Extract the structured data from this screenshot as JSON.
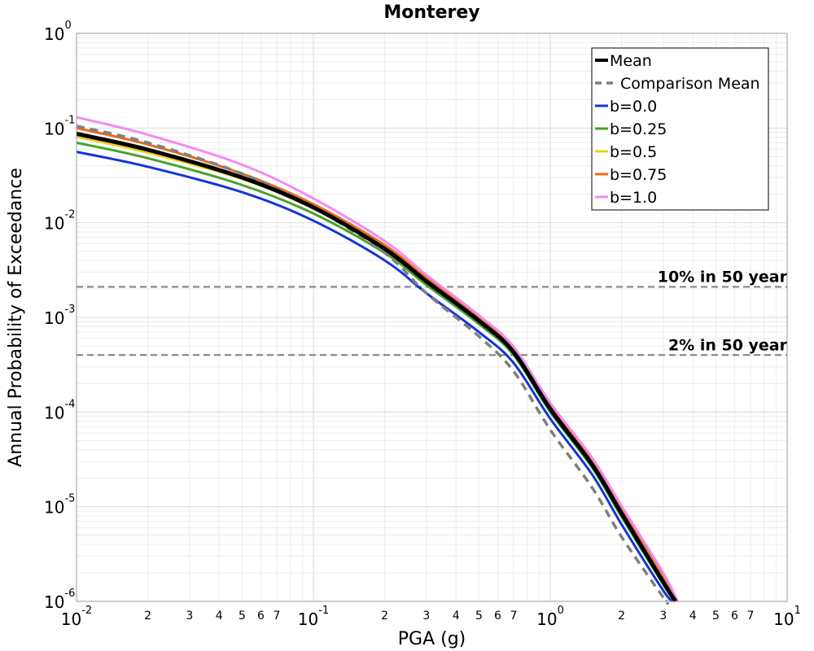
{
  "chart_data": {
    "type": "line",
    "title": "Monterey",
    "xlabel": "PGA (g)",
    "ylabel": "Annual Probability of Exceedance",
    "xscale": "log",
    "yscale": "log",
    "xlim": [
      0.01,
      10
    ],
    "ylim": [
      1e-06,
      1
    ],
    "grid": true,
    "legend_position": "top-right",
    "x_major_ticks": [
      {
        "value": 0.01,
        "base": "10",
        "exp": "-2"
      },
      {
        "value": 0.1,
        "base": "10",
        "exp": "-1"
      },
      {
        "value": 1,
        "base": "10",
        "exp": "0"
      },
      {
        "value": 10,
        "base": "10",
        "exp": "1"
      }
    ],
    "x_minor_tick_labels": [
      "2",
      "3",
      "4",
      "5",
      "6",
      "7"
    ],
    "y_major_ticks": [
      {
        "value": 1,
        "base": "10",
        "exp": "0"
      },
      {
        "value": 0.1,
        "base": "10",
        "exp": "-1"
      },
      {
        "value": 0.01,
        "base": "10",
        "exp": "-2"
      },
      {
        "value": 0.001,
        "base": "10",
        "exp": "-3"
      },
      {
        "value": 0.0001,
        "base": "10",
        "exp": "-4"
      },
      {
        "value": 1e-05,
        "base": "10",
        "exp": "-5"
      },
      {
        "value": 1e-06,
        "base": "10",
        "exp": "-6"
      }
    ],
    "reference_lines": [
      {
        "label": "10% in 50 year",
        "y": 0.0021,
        "color": "#7f7f7f"
      },
      {
        "label": "2% in 50 year",
        "y": 0.0004,
        "color": "#7f7f7f"
      }
    ],
    "series": [
      {
        "name": "b=0.0",
        "color": "#1535d8",
        "width": 3,
        "dash": "",
        "x": [
          0.01,
          0.02,
          0.05,
          0.1,
          0.2,
          0.3,
          0.5,
          0.7,
          1.0,
          1.5,
          2.0,
          3.0,
          3.3
        ],
        "y": [
          0.056,
          0.039,
          0.021,
          0.0105,
          0.004,
          0.0018,
          0.0007,
          0.00033,
          8.5e-05,
          2.2e-05,
          6.5e-06,
          1.3e-06,
          1e-06
        ]
      },
      {
        "name": "b=0.25",
        "color": "#47a22b",
        "width": 3,
        "dash": "",
        "x": [
          0.01,
          0.02,
          0.05,
          0.1,
          0.2,
          0.3,
          0.5,
          0.7,
          1.0,
          1.5,
          2.0,
          3.0,
          3.35
        ],
        "y": [
          0.07,
          0.048,
          0.025,
          0.0125,
          0.0048,
          0.0022,
          0.00085,
          0.0004,
          0.0001,
          2.6e-05,
          7.8e-06,
          1.5e-06,
          1e-06
        ]
      },
      {
        "name": "b=0.5",
        "color": "#e8cf21",
        "width": 3,
        "dash": "",
        "x": [
          0.01,
          0.02,
          0.05,
          0.1,
          0.2,
          0.3,
          0.5,
          0.7,
          1.0,
          1.5,
          2.0,
          3.0,
          3.4
        ],
        "y": [
          0.081,
          0.055,
          0.029,
          0.0142,
          0.0054,
          0.0024,
          0.00092,
          0.00043,
          0.00011,
          2.9e-05,
          8.8e-06,
          1.7e-06,
          1e-06
        ]
      },
      {
        "name": "b=0.75",
        "color": "#ee6617",
        "width": 3,
        "dash": "",
        "x": [
          0.01,
          0.02,
          0.05,
          0.1,
          0.2,
          0.3,
          0.5,
          0.7,
          1.0,
          1.5,
          2.0,
          3.0,
          3.45
        ],
        "y": [
          0.1,
          0.067,
          0.033,
          0.0157,
          0.0058,
          0.0026,
          0.001,
          0.00047,
          0.00012,
          3.2e-05,
          9.8e-06,
          1.9e-06,
          1e-06
        ]
      },
      {
        "name": "b=1.0",
        "color": "#f48bf2",
        "width": 3,
        "dash": "",
        "x": [
          0.01,
          0.02,
          0.05,
          0.1,
          0.2,
          0.3,
          0.5,
          0.7,
          1.0,
          1.5,
          2.0,
          3.0,
          3.45
        ],
        "y": [
          0.13,
          0.085,
          0.041,
          0.018,
          0.0064,
          0.0028,
          0.00105,
          0.00049,
          0.000125,
          3.3e-05,
          1.02e-05,
          2e-06,
          1e-06
        ]
      },
      {
        "name": "Comparison Mean",
        "color": "#7f7f7f",
        "width": 3.5,
        "dash": "10,7",
        "x": [
          0.01,
          0.02,
          0.05,
          0.1,
          0.2,
          0.3,
          0.5,
          0.7,
          1.0,
          1.5,
          2.0,
          3.0,
          3.1
        ],
        "y": [
          0.105,
          0.07,
          0.033,
          0.0145,
          0.0048,
          0.0018,
          0.00063,
          0.00027,
          6.5e-05,
          1.6e-05,
          4.8e-06,
          1.1e-06,
          1e-06
        ]
      },
      {
        "name": "Mean",
        "color": "#000000",
        "width": 5,
        "dash": "",
        "x": [
          0.01,
          0.02,
          0.05,
          0.1,
          0.2,
          0.3,
          0.5,
          0.7,
          1.0,
          1.5,
          2.0,
          3.0,
          3.38
        ],
        "y": [
          0.087,
          0.059,
          0.03,
          0.0145,
          0.0053,
          0.0024,
          0.00092,
          0.00043,
          0.000108,
          2.8e-05,
          8.5e-06,
          1.6e-06,
          1e-06
        ]
      }
    ],
    "legend_order": [
      "Mean",
      "Comparison Mean",
      "b=0.0",
      "b=0.25",
      "b=0.5",
      "b=0.75",
      "b=1.0"
    ]
  }
}
